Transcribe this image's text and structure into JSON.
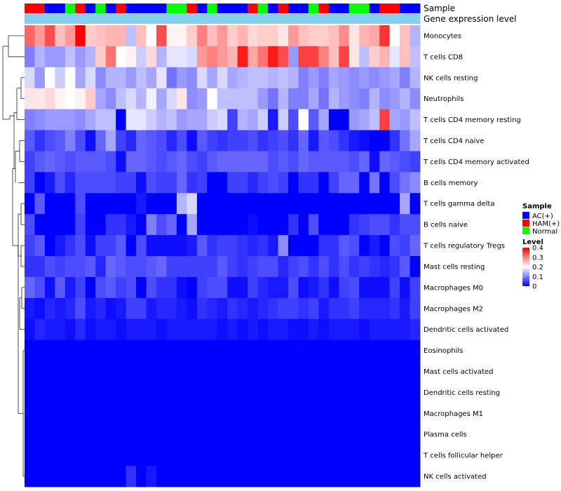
{
  "chart_data": {
    "type": "heatmap",
    "title": "",
    "annotation_labels": {
      "sample": "Sample",
      "gene": "Gene expression level"
    },
    "sample_groups": [
      "HAM(+)",
      "HAM(+)",
      "AC(+)",
      "AC(+)",
      "Normal",
      "HAM(+)",
      "AC(+)",
      "Normal",
      "AC(+)",
      "HAM(+)",
      "AC(+)",
      "AC(+)",
      "AC(+)",
      "AC(+)",
      "Normal",
      "Normal",
      "HAM(+)",
      "AC(+)",
      "Normal",
      "AC(+)",
      "AC(+)",
      "AC(+)",
      "HAM(+)",
      "Normal",
      "AC(+)",
      "HAM(+)",
      "AC(+)",
      "AC(+)",
      "Normal",
      "HAM(+)",
      "AC(+)",
      "AC(+)",
      "Normal",
      "Normal",
      "AC(+)",
      "HAM(+)",
      "HAM(+)",
      "AC(+)",
      "AC(+)"
    ],
    "rows": [
      "Monocytes",
      "T cells CD8",
      "NK cells resting",
      "Neutrophils",
      "T cells CD4 memory resting",
      "T cells CD4 naive",
      "T cells CD4 memory activated",
      "B cells memory",
      "T cells gamma delta",
      "B cells naive",
      "T cells regulatory  Tregs",
      "Mast cells resting",
      "Macrophages M0",
      "Macrophages M2",
      "Dendritic cells activated",
      "Eosinophils",
      "Mast cells activated",
      "Dendritic cells resting",
      "Macrophages M1",
      "Plasma cells",
      "T cells follicular helper",
      "NK cells activated"
    ],
    "values": [
      [
        0.32,
        0.28,
        0.34,
        0.25,
        0.28,
        0.4,
        0.24,
        0.25,
        0.26,
        0.26,
        0.15,
        0.25,
        0.2,
        0.34,
        0.21,
        0.21,
        0.24,
        0.3,
        0.25,
        0.28,
        0.24,
        0.26,
        0.23,
        0.24,
        0.24,
        0.22,
        0.28,
        0.25,
        0.24,
        0.24,
        0.25,
        0.29,
        0.22,
        0.26,
        0.27,
        0.36,
        0.2,
        0.25,
        0.14
      ],
      [
        0.1,
        0.14,
        0.12,
        0.12,
        0.15,
        0.12,
        0.14,
        0.24,
        0.31,
        0.2,
        0.21,
        0.16,
        0.23,
        0.14,
        0.18,
        0.18,
        0.17,
        0.28,
        0.3,
        0.28,
        0.26,
        0.38,
        0.27,
        0.31,
        0.38,
        0.34,
        0.12,
        0.35,
        0.35,
        0.3,
        0.25,
        0.35,
        0.22,
        0.15,
        0.24,
        0.26,
        0.18,
        0.25,
        0.15
      ],
      [
        0.17,
        0.12,
        0.2,
        0.16,
        0.2,
        0.13,
        0.17,
        0.11,
        0.14,
        0.14,
        0.12,
        0.15,
        0.13,
        0.18,
        0.09,
        0.12,
        0.11,
        0.17,
        0.13,
        0.17,
        0.13,
        0.14,
        0.15,
        0.15,
        0.14,
        0.15,
        0.14,
        0.1,
        0.12,
        0.1,
        0.13,
        0.12,
        0.11,
        0.12,
        0.11,
        0.12,
        0.13,
        0.1,
        0.14
      ],
      [
        0.22,
        0.22,
        0.23,
        0.21,
        0.2,
        0.21,
        0.24,
        0.13,
        0.11,
        0.15,
        0.17,
        0.14,
        0.19,
        0.13,
        0.17,
        0.22,
        0.11,
        0.12,
        0.2,
        0.15,
        0.15,
        0.15,
        0.15,
        0.12,
        0.09,
        0.14,
        0.1,
        0.1,
        0.13,
        0.09,
        0.14,
        0.12,
        0.11,
        0.1,
        0.14,
        0.11,
        0.12,
        0.14,
        0.11
      ],
      [
        0.1,
        0.11,
        0.12,
        0.12,
        0.12,
        0.11,
        0.13,
        0.15,
        0.15,
        0.0,
        0.18,
        0.18,
        0.16,
        0.14,
        0.15,
        0.12,
        0.13,
        0.13,
        0.16,
        0.17,
        0.05,
        0.14,
        0.13,
        0.16,
        0.02,
        0.16,
        0.06,
        0.2,
        0.07,
        0.13,
        0.0,
        0.0,
        0.12,
        0.13,
        0.15,
        0.35,
        0.13,
        0.12,
        0.15
      ],
      [
        0.07,
        0.04,
        0.06,
        0.07,
        0.1,
        0.06,
        0.01,
        0.08,
        0.13,
        0.05,
        0.03,
        0.08,
        0.07,
        0.06,
        0.03,
        0.06,
        0.01,
        0.07,
        0.05,
        0.04,
        0.05,
        0.05,
        0.06,
        0.04,
        0.05,
        0.06,
        0.04,
        0.08,
        0.02,
        0.07,
        0.06,
        0.04,
        0.02,
        0.01,
        0.0,
        0.0,
        0.04,
        0.09,
        0.13
      ],
      [
        0.05,
        0.07,
        0.08,
        0.07,
        0.06,
        0.07,
        0.07,
        0.07,
        0.06,
        0.01,
        0.08,
        0.08,
        0.07,
        0.06,
        0.07,
        0.08,
        0.06,
        0.05,
        0.07,
        0.08,
        0.08,
        0.08,
        0.08,
        0.08,
        0.06,
        0.07,
        0.06,
        0.08,
        0.07,
        0.07,
        0.07,
        0.07,
        0.06,
        0.08,
        0.01,
        0.08,
        0.07,
        0.06,
        0.05
      ],
      [
        0.05,
        0.0,
        0.02,
        0.06,
        0.03,
        0.06,
        0.06,
        0.06,
        0.06,
        0.05,
        0.05,
        0.01,
        0.06,
        0.05,
        0.05,
        0.08,
        0.04,
        0.05,
        0.0,
        0.0,
        0.05,
        0.05,
        0.03,
        0.05,
        0.06,
        0.05,
        0.0,
        0.04,
        0.04,
        0.0,
        0.05,
        0.08,
        0.08,
        0.0,
        0.09,
        0.0,
        0.06,
        0.09,
        0.11
      ],
      [
        0.0,
        0.07,
        0.0,
        0.0,
        0.0,
        0.06,
        0.0,
        0.0,
        0.0,
        0.0,
        0.0,
        0.02,
        0.0,
        0.0,
        0.0,
        0.14,
        0.17,
        0.0,
        0.0,
        0.0,
        0.0,
        0.0,
        0.0,
        0.0,
        0.0,
        0.0,
        0.0,
        0.0,
        0.0,
        0.0,
        0.0,
        0.0,
        0.0,
        0.0,
        0.0,
        0.0,
        0.0,
        0.13,
        0.0
      ],
      [
        0.06,
        0.0,
        0.0,
        0.0,
        0.0,
        0.05,
        0.0,
        0.0,
        0.04,
        0.04,
        0.02,
        0.0,
        0.1,
        0.06,
        0.08,
        0.0,
        0.13,
        0.0,
        0.0,
        0.0,
        0.0,
        0.0,
        0.01,
        0.0,
        0.0,
        0.0,
        0.04,
        0.0,
        0.06,
        0.0,
        0.0,
        0.0,
        0.04,
        0.05,
        0.06,
        0.06,
        0.04,
        0.06,
        0.06
      ],
      [
        0.05,
        0.07,
        0.0,
        0.02,
        0.04,
        0.06,
        0.01,
        0.05,
        0.05,
        0.07,
        0.0,
        0.06,
        0.01,
        0.01,
        0.01,
        0.01,
        0.02,
        0.07,
        0.04,
        0.05,
        0.05,
        0.04,
        0.03,
        0.04,
        0.02,
        0.11,
        0.0,
        0.0,
        0.0,
        0.04,
        0.04,
        0.07,
        0.06,
        0.0,
        0.02,
        0.0,
        0.06,
        0.05,
        0.08
      ],
      [
        0.04,
        0.04,
        0.06,
        0.05,
        0.06,
        0.06,
        0.07,
        0.03,
        0.08,
        0.07,
        0.06,
        0.06,
        0.07,
        0.08,
        0.05,
        0.05,
        0.05,
        0.05,
        0.05,
        0.07,
        0.05,
        0.04,
        0.05,
        0.06,
        0.06,
        0.03,
        0.05,
        0.06,
        0.04,
        0.06,
        0.04,
        0.06,
        0.04,
        0.05,
        0.04,
        0.03,
        0.04,
        0.07,
        0.0
      ],
      [
        0.08,
        0.06,
        0.01,
        0.07,
        0.02,
        0.05,
        0.0,
        0.06,
        0.07,
        0.05,
        0.06,
        0.0,
        0.06,
        0.04,
        0.04,
        0.01,
        0.0,
        0.05,
        0.06,
        0.06,
        0.01,
        0.01,
        0.05,
        0.03,
        0.02,
        0.02,
        0.06,
        0.01,
        0.02,
        0.04,
        0.01,
        0.05,
        0.06,
        0.01,
        0.01,
        0.01,
        0.05,
        0.01,
        0.05
      ],
      [
        0.02,
        0.01,
        0.03,
        0.02,
        0.03,
        0.06,
        0.02,
        0.03,
        0.01,
        0.02,
        0.05,
        0.05,
        0.02,
        0.03,
        0.03,
        0.02,
        0.01,
        0.04,
        0.03,
        0.02,
        0.04,
        0.03,
        0.02,
        0.03,
        0.04,
        0.05,
        0.05,
        0.04,
        0.05,
        0.02,
        0.04,
        0.04,
        0.05,
        0.03,
        0.03,
        0.03,
        0.04,
        0.02,
        0.05
      ],
      [
        0.01,
        0.03,
        0.02,
        0.02,
        0.01,
        0.03,
        0.01,
        0.02,
        0.02,
        0.01,
        0.02,
        0.02,
        0.02,
        0.01,
        0.02,
        0.02,
        0.02,
        0.02,
        0.02,
        0.01,
        0.02,
        0.01,
        0.02,
        0.01,
        0.02,
        0.02,
        0.01,
        0.01,
        0.02,
        0.01,
        0.02,
        0.02,
        0.02,
        0.01,
        0.02,
        0.02,
        0.02,
        0.02,
        0.03
      ],
      [
        0.0,
        0.0,
        0.0,
        0.0,
        0.0,
        0.0,
        0.0,
        0.0,
        0.0,
        0.0,
        0.0,
        0.0,
        0.0,
        0.0,
        0.0,
        0.0,
        0.0,
        0.0,
        0.0,
        0.0,
        0.0,
        0.0,
        0.0,
        0.0,
        0.0,
        0.0,
        0.0,
        0.0,
        0.0,
        0.0,
        0.0,
        0.0,
        0.0,
        0.0,
        0.0,
        0.0,
        0.0,
        0.0,
        0.0
      ],
      [
        0.0,
        0.0,
        0.0,
        0.0,
        0.0,
        0.0,
        0.0,
        0.0,
        0.0,
        0.0,
        0.0,
        0.0,
        0.0,
        0.0,
        0.0,
        0.0,
        0.0,
        0.0,
        0.0,
        0.0,
        0.0,
        0.0,
        0.0,
        0.0,
        0.0,
        0.0,
        0.0,
        0.0,
        0.0,
        0.0,
        0.0,
        0.0,
        0.0,
        0.0,
        0.0,
        0.0,
        0.0,
        0.0,
        0.0
      ],
      [
        0.0,
        0.0,
        0.0,
        0.0,
        0.0,
        0.0,
        0.0,
        0.0,
        0.0,
        0.0,
        0.0,
        0.0,
        0.0,
        0.0,
        0.0,
        0.0,
        0.0,
        0.0,
        0.0,
        0.0,
        0.0,
        0.0,
        0.0,
        0.0,
        0.0,
        0.0,
        0.0,
        0.0,
        0.0,
        0.0,
        0.0,
        0.0,
        0.0,
        0.0,
        0.0,
        0.0,
        0.0,
        0.0,
        0.0
      ],
      [
        0.0,
        0.0,
        0.0,
        0.0,
        0.0,
        0.0,
        0.0,
        0.0,
        0.0,
        0.0,
        0.0,
        0.0,
        0.0,
        0.0,
        0.0,
        0.0,
        0.0,
        0.0,
        0.0,
        0.0,
        0.0,
        0.0,
        0.0,
        0.0,
        0.0,
        0.0,
        0.0,
        0.0,
        0.0,
        0.0,
        0.0,
        0.0,
        0.0,
        0.0,
        0.0,
        0.0,
        0.0,
        0.0,
        0.0
      ],
      [
        0.0,
        0.0,
        0.0,
        0.0,
        0.0,
        0.0,
        0.0,
        0.0,
        0.0,
        0.0,
        0.0,
        0.0,
        0.0,
        0.0,
        0.0,
        0.0,
        0.0,
        0.0,
        0.0,
        0.0,
        0.0,
        0.0,
        0.0,
        0.0,
        0.0,
        0.0,
        0.0,
        0.0,
        0.0,
        0.0,
        0.0,
        0.0,
        0.0,
        0.0,
        0.0,
        0.0,
        0.0,
        0.0,
        0.0
      ],
      [
        0.0,
        0.0,
        0.0,
        0.0,
        0.0,
        0.0,
        0.0,
        0.0,
        0.0,
        0.0,
        0.0,
        0.0,
        0.0,
        0.0,
        0.0,
        0.0,
        0.0,
        0.0,
        0.0,
        0.0,
        0.0,
        0.0,
        0.0,
        0.0,
        0.0,
        0.0,
        0.0,
        0.0,
        0.0,
        0.0,
        0.0,
        0.0,
        0.0,
        0.0,
        0.0,
        0.0,
        0.0,
        0.0,
        0.0
      ],
      [
        0.0,
        0.0,
        0.0,
        0.0,
        0.0,
        0.0,
        0.0,
        0.0,
        0.0,
        0.0,
        0.04,
        0.0,
        0.02,
        0.0,
        0.0,
        0.0,
        0.0,
        0.0,
        0.0,
        0.0,
        0.0,
        0.0,
        0.0,
        0.0,
        0.0,
        0.0,
        0.0,
        0.0,
        0.0,
        0.0,
        0.0,
        0.0,
        0.0,
        0.0,
        0.0,
        0.0,
        0.0,
        0.0,
        0.0
      ]
    ],
    "color_scale": {
      "title": "Level",
      "min": 0,
      "mid": 0.2,
      "max": 0.4,
      "low_color": "#0000ff",
      "mid_color": "#ffffff",
      "high_color": "#ff0000",
      "ticks": [
        "0.4",
        "0.3",
        "0.2",
        "0.1",
        "0"
      ]
    },
    "sample_legend": {
      "title": "Sample",
      "entries": [
        {
          "label": "AC(+)",
          "color": "#0000ff"
        },
        {
          "label": "HAM(+)",
          "color": "#ff0000"
        },
        {
          "label": "Normal",
          "color": "#00ff00"
        }
      ]
    },
    "gene_bar_color": "#87ceeb",
    "legend_position": "right"
  }
}
